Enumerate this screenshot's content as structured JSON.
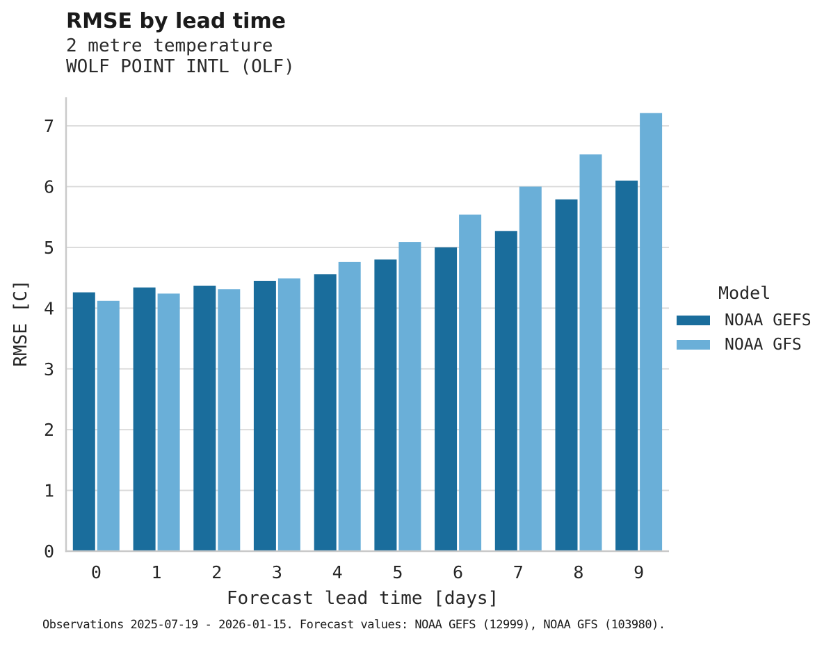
{
  "header": {
    "title": "RMSE by lead time",
    "subtitle_variable": "2 metre temperature",
    "subtitle_station": "WOLF POINT INTL (OLF)"
  },
  "chart_data": {
    "type": "bar",
    "title": "RMSE by lead time",
    "subtitles": [
      "2 metre temperature",
      "WOLF POINT INTL (OLF)"
    ],
    "xlabel": "Forecast lead time [days]",
    "ylabel": "RMSE [C]",
    "categories": [
      "0",
      "1",
      "2",
      "3",
      "4",
      "5",
      "6",
      "7",
      "8",
      "9"
    ],
    "series": [
      {
        "name": "NOAA GEFS",
        "color": "#1A6D9C",
        "values": [
          4.26,
          4.34,
          4.37,
          4.45,
          4.56,
          4.8,
          5.0,
          5.27,
          5.79,
          6.1
        ]
      },
      {
        "name": "NOAA GFS",
        "color": "#6AAFD8",
        "values": [
          4.12,
          4.24,
          4.31,
          4.49,
          4.76,
          5.09,
          5.54,
          6.0,
          6.53,
          7.21
        ]
      }
    ],
    "yticks": [
      0,
      1,
      2,
      3,
      4,
      5,
      6,
      7
    ],
    "ylim": [
      0,
      7.47
    ],
    "grid": true,
    "legend_position": "right",
    "legend_title": "Model",
    "grid_color": "#d9d9d9",
    "axis_color": "#c9c9c9",
    "text_color": "#262626"
  },
  "legend": {
    "title": "Model",
    "items": [
      {
        "label": "NOAA GEFS",
        "color": "#1A6D9C"
      },
      {
        "label": "NOAA GFS",
        "color": "#6AAFD8"
      }
    ]
  },
  "footer": {
    "caption": "Observations 2025-07-19 - 2026-01-15. Forecast values: NOAA GEFS (12999), NOAA GFS (103980)."
  }
}
